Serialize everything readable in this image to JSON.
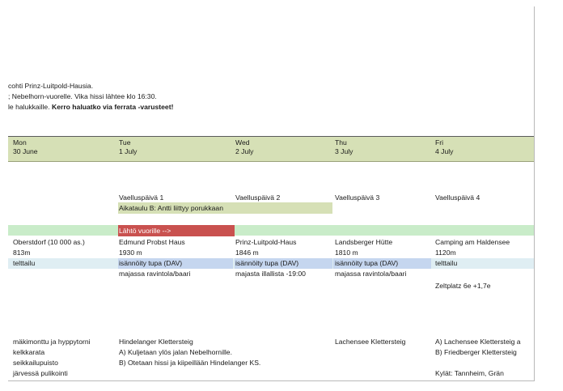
{
  "notes": {
    "line1": "cohti Prinz-Luitpold-Hausia.",
    "line2": "; Nebelhorn-vuorelle. Vika hissi lähtee klo 16:30.",
    "line3_plain": "le halukkaille. ",
    "line3_bold": "Kerro haluatko via ferrata -varusteet!"
  },
  "header": [
    {
      "day": "Mon",
      "date": "30 June"
    },
    {
      "day": "Tue",
      "date": "1 July"
    },
    {
      "day": "Wed",
      "date": "2 July"
    },
    {
      "day": "Thu",
      "date": "3 July"
    },
    {
      "day": "Fri",
      "date": "4 July"
    }
  ],
  "hiking_days": [
    "Vaelluspäivä 1",
    "Vaelluspäivä 2",
    "Vaelluspäivä 3",
    "Vaelluspäivä 4"
  ],
  "schedule_b": "Aikataulu B: Antti liittyy porukkaan",
  "departure": "Lähtö vuorille -->",
  "places": [
    {
      "name": "Oberstdorf (10 000 as.)",
      "altitude": "813m",
      "lodging": "telttailu",
      "food": ""
    },
    {
      "name": "Edmund Probst Haus",
      "altitude": "1930 m",
      "lodging": "isännöity tupa (DAV)",
      "food": "majassa ravintola/baari"
    },
    {
      "name": "Prinz-Luitpold-Haus",
      "altitude": "1846 m",
      "lodging": "isännöity tupa (DAV)",
      "food": "majasta illallista -19:00"
    },
    {
      "name": "Landsberger Hütte",
      "altitude": "1810 m",
      "lodging": "isännöity tupa (DAV)",
      "food": "majassa ravintola/baari"
    },
    {
      "name": "Camping am Haldensee",
      "altitude": "1120m",
      "lodging": "telttailu",
      "food": ""
    }
  ],
  "camping_price": "Zeltplatz 6e +1,7e",
  "activities": {
    "mon": [
      "mäkimonttu ja hyppytorni",
      "kelkkarata",
      "seikkailupuisto",
      "järvessä pulikointi"
    ],
    "tue": [
      "Hindelanger Klettersteig",
      "A) Kuljetaan ylös jalan Nebelhornille.",
      "B) Otetaan hissi ja kiipeillään Hindelanger KS."
    ],
    "thu": [
      "Lachensee Klettersteig"
    ],
    "fri": [
      "A) Lachensee Klettersteig a",
      "B) Friedberger Klettersteig",
      "Kylät: Tannheim, Grän"
    ]
  }
}
